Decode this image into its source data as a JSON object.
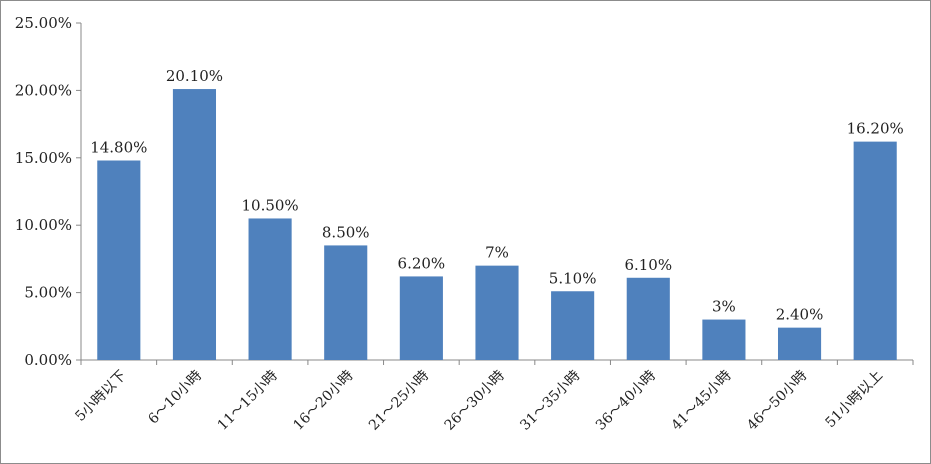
{
  "chart_data": {
    "type": "bar",
    "categories": [
      "5小時以下",
      "6～10小時",
      "11～15小時",
      "16～20小時",
      "21～25小時",
      "26～30小時",
      "31～35小時",
      "36～40小時",
      "41～45小時",
      "46～50小時",
      "51小時以上"
    ],
    "values": [
      14.8,
      20.1,
      10.5,
      8.5,
      6.2,
      7,
      5.1,
      6.1,
      3,
      2.4,
      16.2
    ],
    "data_labels": [
      "14.80%",
      "20.10%",
      "10.50%",
      "8.50%",
      "6.20%",
      "7%",
      "5.10%",
      "6.10%",
      "3%",
      "2.40%",
      "16.20%"
    ],
    "y_ticks": [
      "0.00%",
      "5.00%",
      "10.00%",
      "15.00%",
      "20.00%",
      "25.00%"
    ],
    "ylim": [
      0,
      25
    ],
    "grid": false,
    "legend": "none",
    "bar_color": "#4f81bd"
  }
}
